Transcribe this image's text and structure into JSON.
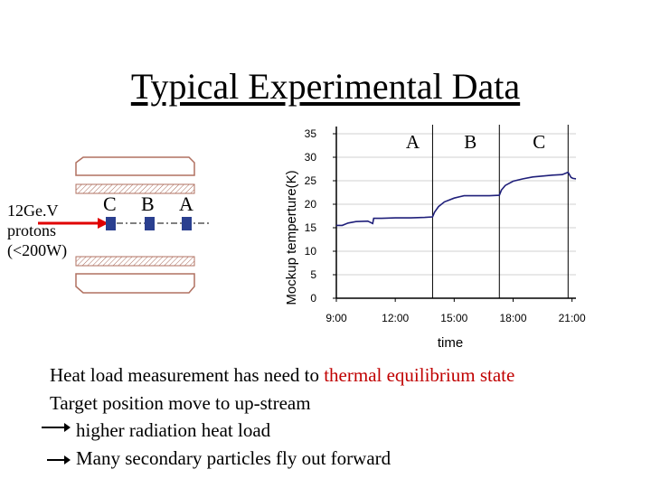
{
  "slide": {
    "title": "Typical Experimental Data",
    "beam_label_lines": [
      "12Ge.V",
      "protons",
      "(<200W)"
    ],
    "target_labels": [
      "C",
      "B",
      "A"
    ],
    "paragraphs": [
      {
        "pre": "Heat load measurement has need to ",
        "red": "thermal equilibrium state"
      },
      {
        "pre": "Target position move to up-stream"
      }
    ],
    "arrow_points": [
      "higher radiation heat load",
      "Many secondary particles fly out forward"
    ],
    "colors": {
      "text": "#000000",
      "accent_red": "#c00000",
      "series": "#1f1f7a",
      "beam_arrow": "#e00000",
      "target": "#2a3f8f"
    }
  },
  "chart_data": {
    "type": "line",
    "title": "",
    "xlabel": "time",
    "ylabel": "Mockup temperture(K)",
    "xlim": [
      9,
      21.2
    ],
    "ylim": [
      0,
      35
    ],
    "xticks": [
      9,
      12,
      15,
      18,
      21
    ],
    "xtick_labels": [
      "9:00",
      "12:00",
      "15:00",
      "18:00",
      "21:00"
    ],
    "yticks": [
      0,
      5,
      10,
      15,
      20,
      25,
      30,
      35
    ],
    "grid": "horizontal",
    "events": [
      {
        "x": 13.9,
        "label": "A"
      },
      {
        "x": 17.3,
        "label": "B"
      },
      {
        "x": 20.8,
        "label": "C"
      }
    ],
    "series": [
      {
        "values": [
          [
            9.0,
            15.5
          ],
          [
            9.3,
            15.5
          ],
          [
            9.6,
            16.0
          ],
          [
            10.0,
            16.3
          ],
          [
            10.6,
            16.4
          ],
          [
            10.85,
            15.9
          ],
          [
            10.9,
            17.0
          ],
          [
            11.3,
            17.0
          ],
          [
            12.0,
            17.1
          ],
          [
            12.8,
            17.1
          ],
          [
            13.5,
            17.2
          ],
          [
            13.9,
            17.3
          ],
          [
            14.0,
            18.3
          ],
          [
            14.2,
            19.5
          ],
          [
            14.5,
            20.5
          ],
          [
            15.0,
            21.3
          ],
          [
            15.5,
            21.8
          ],
          [
            16.0,
            21.8
          ],
          [
            16.8,
            21.8
          ],
          [
            17.3,
            21.9
          ],
          [
            17.4,
            23.0
          ],
          [
            17.6,
            24.0
          ],
          [
            18.0,
            24.9
          ],
          [
            18.5,
            25.4
          ],
          [
            19.0,
            25.8
          ],
          [
            19.5,
            26.0
          ],
          [
            20.0,
            26.2
          ],
          [
            20.5,
            26.3
          ],
          [
            20.8,
            26.8
          ],
          [
            20.95,
            25.7
          ],
          [
            21.05,
            25.5
          ],
          [
            21.2,
            25.4
          ]
        ]
      }
    ]
  }
}
